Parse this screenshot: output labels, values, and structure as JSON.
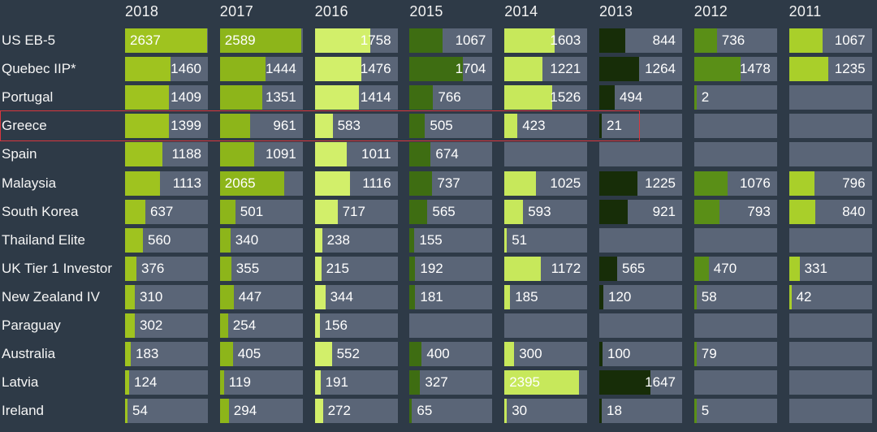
{
  "chart_data": {
    "type": "bar",
    "title": "",
    "years": [
      "2018",
      "2017",
      "2016",
      "2015",
      "2014",
      "2013",
      "2012",
      "2011"
    ],
    "max_value": 2650,
    "highlighted_row": "Greece",
    "rows": [
      {
        "country": "US EB-5",
        "values": [
          2637,
          2589,
          1758,
          1067,
          1603,
          844,
          736,
          1067
        ]
      },
      {
        "country": "Quebec IIP*",
        "values": [
          1460,
          1444,
          1476,
          1704,
          1221,
          1264,
          1478,
          1235
        ]
      },
      {
        "country": "Portugal",
        "values": [
          1409,
          1351,
          1414,
          766,
          1526,
          494,
          2,
          null
        ]
      },
      {
        "country": "Greece",
        "values": [
          1399,
          961,
          583,
          505,
          423,
          21,
          null,
          null
        ]
      },
      {
        "country": "Spain",
        "values": [
          1188,
          1091,
          1011,
          674,
          null,
          null,
          null,
          null
        ]
      },
      {
        "country": "Malaysia",
        "values": [
          1113,
          2065,
          1116,
          737,
          1025,
          1225,
          1076,
          796
        ]
      },
      {
        "country": "South Korea",
        "values": [
          637,
          501,
          717,
          565,
          593,
          921,
          793,
          840
        ]
      },
      {
        "country": "Thailand Elite",
        "values": [
          560,
          340,
          238,
          155,
          51,
          null,
          null,
          null
        ]
      },
      {
        "country": "UK Tier 1 Investor",
        "values": [
          376,
          355,
          215,
          192,
          1172,
          565,
          470,
          331
        ]
      },
      {
        "country": "New Zealand IV",
        "values": [
          310,
          447,
          344,
          181,
          185,
          120,
          58,
          42
        ]
      },
      {
        "country": "Paraguay",
        "values": [
          302,
          254,
          156,
          null,
          null,
          null,
          null,
          null
        ]
      },
      {
        "country": "Australia",
        "values": [
          183,
          405,
          552,
          400,
          300,
          100,
          79,
          null
        ]
      },
      {
        "country": "Latvia",
        "values": [
          124,
          119,
          191,
          327,
          2395,
          1647,
          null,
          null
        ]
      },
      {
        "country": "Ireland",
        "values": [
          54,
          294,
          272,
          65,
          30,
          18,
          5,
          null
        ]
      }
    ]
  },
  "colors": {
    "background": "#2e3a47",
    "track": "#5a6577",
    "highlight_border": "#d9363e",
    "year_colors": [
      "#9fc31f",
      "#8db51a",
      "#d2ef6a",
      "#3e6d12",
      "#c7e85b",
      "#172d08",
      "#5a8f17",
      "#a9cf2a"
    ]
  }
}
